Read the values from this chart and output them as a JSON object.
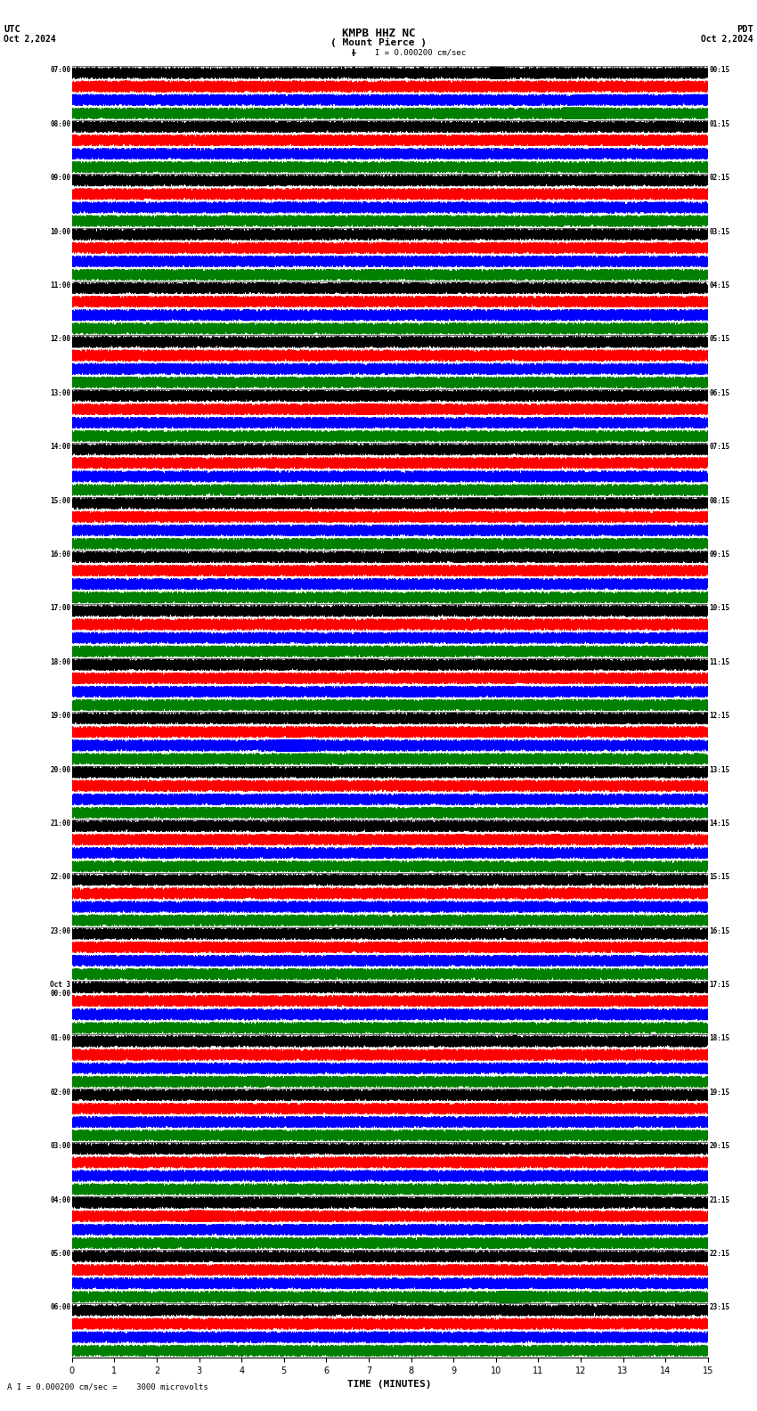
{
  "title_line1": "KMPB HHZ NC",
  "title_line2": "( Mount Pierce )",
  "scale_label": "I = 0.000200 cm/sec",
  "utc_label": "UTC",
  "pdt_label": "PDT",
  "date_left": "Oct 2,2024",
  "date_right": "Oct 2,2024",
  "bottom_label": "A I = 0.000200 cm/sec =    3000 microvolts",
  "xlabel": "TIME (MINUTES)",
  "left_times": [
    "07:00",
    "08:00",
    "09:00",
    "10:00",
    "11:00",
    "12:00",
    "13:00",
    "14:00",
    "15:00",
    "16:00",
    "17:00",
    "18:00",
    "19:00",
    "20:00",
    "21:00",
    "22:00",
    "23:00",
    "Oct 3\n00:00",
    "01:00",
    "02:00",
    "03:00",
    "04:00",
    "05:00",
    "06:00"
  ],
  "right_times": [
    "00:15",
    "01:15",
    "02:15",
    "03:15",
    "04:15",
    "05:15",
    "06:15",
    "07:15",
    "08:15",
    "09:15",
    "10:15",
    "11:15",
    "12:15",
    "13:15",
    "14:15",
    "15:15",
    "16:15",
    "17:15",
    "18:15",
    "19:15",
    "20:15",
    "21:15",
    "22:15",
    "23:15"
  ],
  "n_rows": 24,
  "n_traces_per_row": 4,
  "minutes": 15,
  "sample_rate": 50,
  "colors": [
    "black",
    "red",
    "blue",
    "green"
  ],
  "bg_color": "white",
  "fig_width": 8.5,
  "fig_height": 15.84,
  "x_ticks": [
    0,
    1,
    2,
    3,
    4,
    5,
    6,
    7,
    8,
    9,
    10,
    11,
    12,
    13,
    14,
    15
  ],
  "tick_fontsize": 7,
  "label_fontsize": 8,
  "title_fontsize": 9,
  "trace_amplitude": 0.42,
  "linewidth": 0.4
}
